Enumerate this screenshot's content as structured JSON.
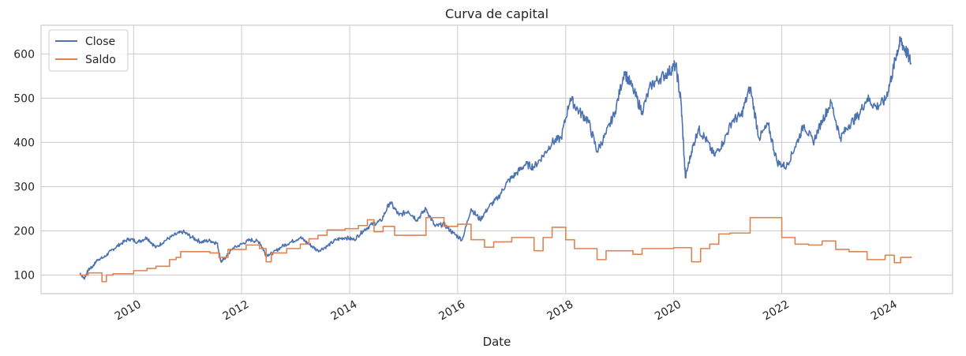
{
  "chart_data": {
    "type": "line",
    "title": "Curva de capital",
    "xlabel": "Date",
    "ylabel": "",
    "xlim": [
      "2008-04-15",
      "2025-03-01"
    ],
    "ylim": [
      58,
      665
    ],
    "grid": true,
    "legend_position": "top-left",
    "x_ticks": [
      "2010-01-01",
      "2012-01-01",
      "2014-01-01",
      "2016-01-01",
      "2018-01-01",
      "2020-01-01",
      "2022-01-01",
      "2024-01-01"
    ],
    "x_tick_labels": [
      "2010",
      "2012",
      "2014",
      "2016",
      "2018",
      "2020",
      "2022",
      "2024"
    ],
    "y_ticks": [
      100,
      200,
      300,
      400,
      500,
      600
    ],
    "y_tick_labels": [
      "100",
      "200",
      "300",
      "400",
      "500",
      "600"
    ],
    "colors": {
      "Close": "#4c72b0",
      "Saldo": "#dd8452",
      "grid": "#cccccc",
      "axes": "#cccccc"
    },
    "series": [
      {
        "name": "Close",
        "style": "line",
        "points": [
          [
            "2009-01-02",
            105
          ],
          [
            "2009-02-01",
            92
          ],
          [
            "2009-03-01",
            112
          ],
          [
            "2009-04-01",
            120
          ],
          [
            "2009-05-01",
            135
          ],
          [
            "2009-06-15",
            140
          ],
          [
            "2009-08-01",
            155
          ],
          [
            "2009-10-01",
            170
          ],
          [
            "2009-12-01",
            182
          ],
          [
            "2010-02-01",
            175
          ],
          [
            "2010-04-01",
            185
          ],
          [
            "2010-06-01",
            162
          ],
          [
            "2010-08-01",
            178
          ],
          [
            "2010-10-01",
            190
          ],
          [
            "2010-12-01",
            198
          ],
          [
            "2011-02-01",
            185
          ],
          [
            "2011-04-01",
            175
          ],
          [
            "2011-06-01",
            178
          ],
          [
            "2011-07-20",
            172
          ],
          [
            "2011-08-15",
            130
          ],
          [
            "2011-09-15",
            140
          ],
          [
            "2011-11-01",
            160
          ],
          [
            "2012-01-01",
            170
          ],
          [
            "2012-03-01",
            180
          ],
          [
            "2012-05-01",
            175
          ],
          [
            "2012-06-15",
            145
          ],
          [
            "2012-08-01",
            150
          ],
          [
            "2012-10-01",
            165
          ],
          [
            "2012-12-01",
            175
          ],
          [
            "2013-02-01",
            185
          ],
          [
            "2013-04-01",
            170
          ],
          [
            "2013-06-01",
            155
          ],
          [
            "2013-08-01",
            165
          ],
          [
            "2013-10-01",
            180
          ],
          [
            "2013-12-01",
            185
          ],
          [
            "2014-02-01",
            180
          ],
          [
            "2014-04-01",
            200
          ],
          [
            "2014-06-01",
            215
          ],
          [
            "2014-08-01",
            222
          ],
          [
            "2014-10-01",
            265
          ],
          [
            "2014-12-01",
            235
          ],
          [
            "2015-02-01",
            245
          ],
          [
            "2015-04-01",
            225
          ],
          [
            "2015-06-01",
            250
          ],
          [
            "2015-08-01",
            210
          ],
          [
            "2015-10-01",
            215
          ],
          [
            "2015-12-01",
            195
          ],
          [
            "2016-02-01",
            180
          ],
          [
            "2016-04-01",
            250
          ],
          [
            "2016-06-01",
            225
          ],
          [
            "2016-08-01",
            255
          ],
          [
            "2016-10-01",
            275
          ],
          [
            "2016-12-01",
            310
          ],
          [
            "2017-02-01",
            330
          ],
          [
            "2017-04-01",
            350
          ],
          [
            "2017-06-01",
            345
          ],
          [
            "2017-08-01",
            370
          ],
          [
            "2017-10-01",
            400
          ],
          [
            "2017-12-01",
            410
          ],
          [
            "2018-02-01",
            500
          ],
          [
            "2018-04-01",
            470
          ],
          [
            "2018-06-01",
            450
          ],
          [
            "2018-08-01",
            380
          ],
          [
            "2018-10-01",
            420
          ],
          [
            "2018-12-01",
            470
          ],
          [
            "2019-02-01",
            560
          ],
          [
            "2019-04-01",
            520
          ],
          [
            "2019-06-01",
            470
          ],
          [
            "2019-08-01",
            530
          ],
          [
            "2019-10-01",
            545
          ],
          [
            "2019-12-01",
            560
          ],
          [
            "2020-01-15",
            575
          ],
          [
            "2020-02-20",
            490
          ],
          [
            "2020-03-20",
            320
          ],
          [
            "2020-05-01",
            380
          ],
          [
            "2020-06-15",
            430
          ],
          [
            "2020-08-01",
            410
          ],
          [
            "2020-10-01",
            370
          ],
          [
            "2020-12-01",
            400
          ],
          [
            "2021-02-01",
            450
          ],
          [
            "2021-04-01",
            460
          ],
          [
            "2021-06-01",
            525
          ],
          [
            "2021-08-01",
            410
          ],
          [
            "2021-10-01",
            440
          ],
          [
            "2021-12-01",
            355
          ],
          [
            "2022-02-01",
            345
          ],
          [
            "2022-04-01",
            390
          ],
          [
            "2022-06-01",
            440
          ],
          [
            "2022-08-01",
            400
          ],
          [
            "2022-10-01",
            450
          ],
          [
            "2022-12-01",
            490
          ],
          [
            "2023-02-01",
            410
          ],
          [
            "2023-04-01",
            440
          ],
          [
            "2023-06-01",
            460
          ],
          [
            "2023-08-01",
            500
          ],
          [
            "2023-10-01",
            480
          ],
          [
            "2023-12-01",
            495
          ],
          [
            "2024-01-15",
            550
          ],
          [
            "2024-02-15",
            600
          ],
          [
            "2024-03-15",
            630
          ],
          [
            "2024-04-15",
            610
          ],
          [
            "2024-05-25",
            580
          ]
        ]
      },
      {
        "name": "Saldo",
        "style": "step",
        "points": [
          [
            "2009-01-02",
            100
          ],
          [
            "2009-03-01",
            105
          ],
          [
            "2009-06-01",
            85
          ],
          [
            "2009-07-01",
            100
          ],
          [
            "2009-08-15",
            103
          ],
          [
            "2010-01-01",
            110
          ],
          [
            "2010-04-01",
            115
          ],
          [
            "2010-06-01",
            120
          ],
          [
            "2010-09-01",
            135
          ],
          [
            "2010-10-15",
            140
          ],
          [
            "2010-11-15",
            153
          ],
          [
            "2011-06-01",
            150
          ],
          [
            "2011-08-01",
            140
          ],
          [
            "2011-10-01",
            158
          ],
          [
            "2012-02-01",
            168
          ],
          [
            "2012-05-01",
            160
          ],
          [
            "2012-06-15",
            130
          ],
          [
            "2012-07-20",
            150
          ],
          [
            "2012-11-01",
            160
          ],
          [
            "2013-02-01",
            170
          ],
          [
            "2013-04-01",
            182
          ],
          [
            "2013-06-01",
            190
          ],
          [
            "2013-08-01",
            202
          ],
          [
            "2013-12-01",
            205
          ],
          [
            "2014-03-01",
            212
          ],
          [
            "2014-05-01",
            225
          ],
          [
            "2014-06-15",
            198
          ],
          [
            "2014-08-15",
            210
          ],
          [
            "2014-11-01",
            190
          ],
          [
            "2015-06-01",
            230
          ],
          [
            "2015-10-01",
            210
          ],
          [
            "2016-01-01",
            215
          ],
          [
            "2016-04-01",
            180
          ],
          [
            "2016-07-01",
            163
          ],
          [
            "2016-09-01",
            175
          ],
          [
            "2017-01-01",
            185
          ],
          [
            "2017-06-01",
            155
          ],
          [
            "2017-08-01",
            185
          ],
          [
            "2017-10-01",
            208
          ],
          [
            "2018-01-01",
            180
          ],
          [
            "2018-03-01",
            160
          ],
          [
            "2018-08-01",
            135
          ],
          [
            "2018-10-01",
            155
          ],
          [
            "2019-04-01",
            147
          ],
          [
            "2019-06-01",
            160
          ],
          [
            "2020-01-01",
            162
          ],
          [
            "2020-05-01",
            130
          ],
          [
            "2020-07-01",
            160
          ],
          [
            "2020-09-01",
            170
          ],
          [
            "2020-11-01",
            193
          ],
          [
            "2021-01-15",
            195
          ],
          [
            "2021-06-01",
            230
          ],
          [
            "2022-01-01",
            185
          ],
          [
            "2022-04-01",
            170
          ],
          [
            "2022-07-01",
            168
          ],
          [
            "2022-10-01",
            177
          ],
          [
            "2023-01-01",
            158
          ],
          [
            "2023-04-01",
            153
          ],
          [
            "2023-08-01",
            135
          ],
          [
            "2023-12-01",
            145
          ],
          [
            "2024-02-01",
            128
          ],
          [
            "2024-03-15",
            140
          ],
          [
            "2024-05-25",
            142
          ]
        ]
      }
    ]
  }
}
